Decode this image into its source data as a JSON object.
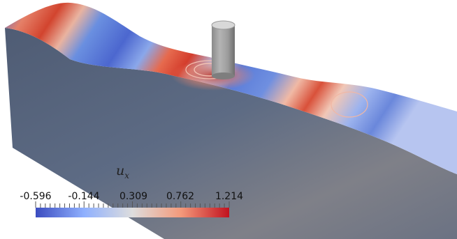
{
  "colorbar": {
    "title_symbol": "u",
    "title_subscript": "x",
    "ticks": [
      "-0.596",
      "-0.144",
      "0.309",
      "0.762",
      "1.214"
    ],
    "range": [
      -0.596,
      1.214
    ],
    "colormap": {
      "low": "#3b4cc0",
      "mid": "#dddddd",
      "high": "#c1121f"
    }
  },
  "colors": {
    "block_side": "#59677f",
    "cylinder": "#9a9a9a",
    "background": "#ffffff"
  }
}
